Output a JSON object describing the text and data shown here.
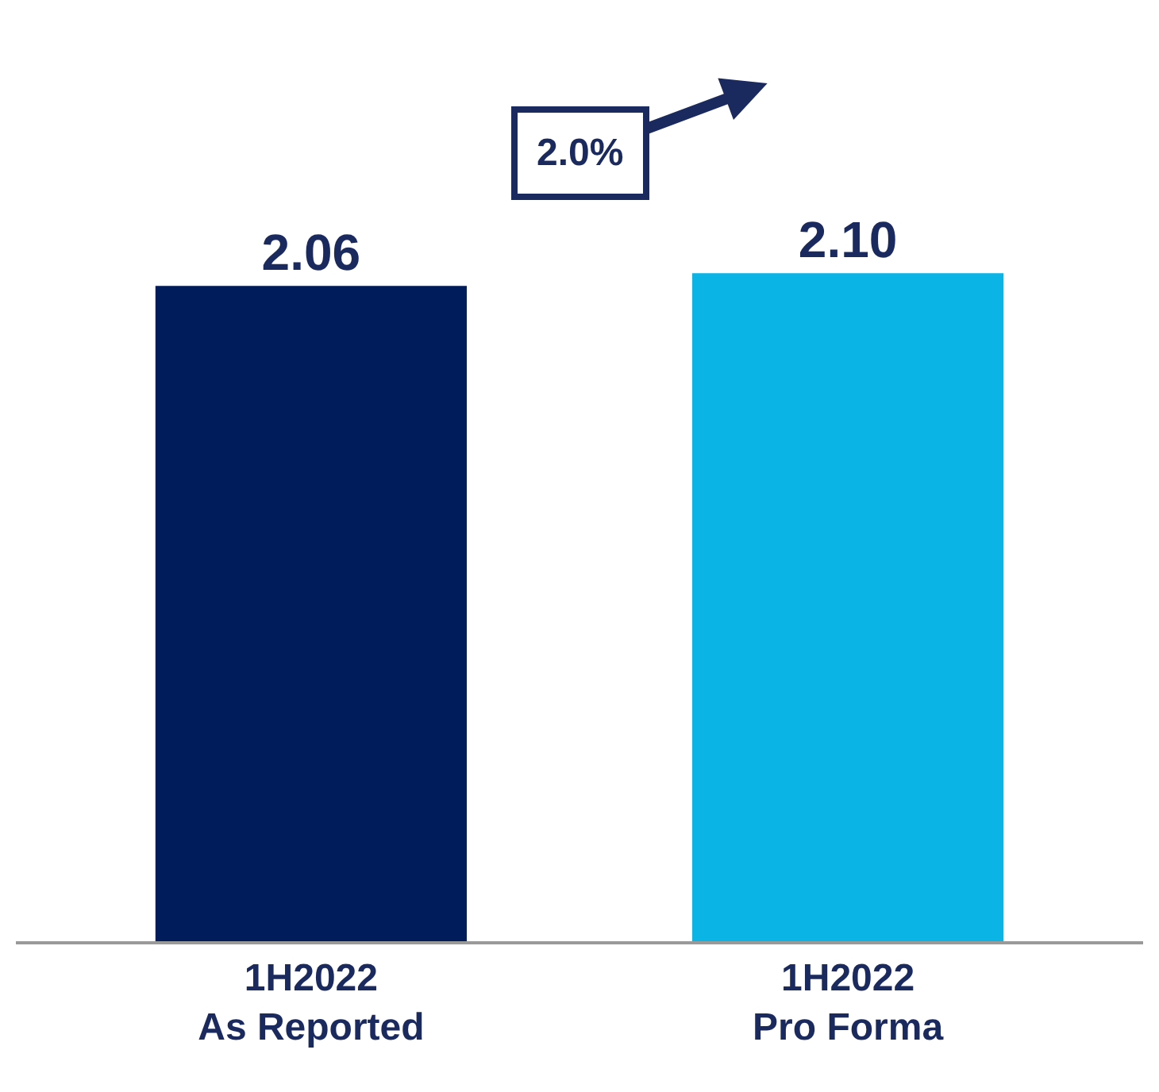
{
  "chart_data": {
    "type": "bar",
    "categories": [
      "1H2022\nAs Reported",
      "1H2022\nPro Forma"
    ],
    "values": [
      2.06,
      2.1
    ],
    "colors": [
      "#001c5a",
      "#0ab4e4"
    ],
    "data_labels": true,
    "tick_labels": "x",
    "value_labels": [
      "2.06",
      "2.10"
    ],
    "annotations": [
      "2.0%"
    ]
  }
}
